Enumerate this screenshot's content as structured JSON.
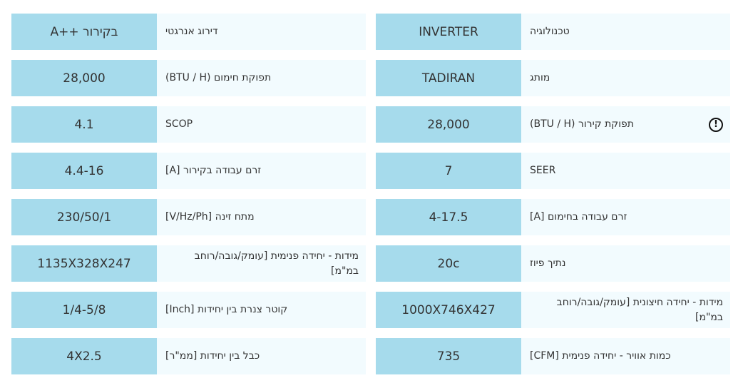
{
  "right_column": [
    {
      "label": "טכנולוגיה",
      "value": "INVERTER"
    },
    {
      "label": "מותג",
      "value": "TADIRAN"
    },
    {
      "label": "תפוקת קירור (BTU / H)",
      "value": "28,000",
      "icon": "info-icon"
    },
    {
      "label": "SEER",
      "value": "7"
    },
    {
      "label": "זרם עבודה בחימום [A]",
      "value": "4-17.5"
    },
    {
      "label": "נתיך פיוז",
      "value": "20c"
    },
    {
      "label": "מידות - יחידה חיצונית [עומק/גובה/רוחב במ\"מ]",
      "value": "1000X746X427"
    },
    {
      "label": "כמות אוויר - יחידה פנימית [CFM]",
      "value": "735"
    }
  ],
  "left_column": [
    {
      "label": "דירוג אנרגטי",
      "value": "A++ בקירור"
    },
    {
      "label": "תפוקת חימום (BTU / H)",
      "value": "28,000"
    },
    {
      "label": "SCOP",
      "value": "4.1"
    },
    {
      "label": "זרם עבודה בקירור [A]",
      "value": "4.4-16"
    },
    {
      "label": "מתח זינה [V/Hz/Ph]",
      "value": "230/50/1"
    },
    {
      "label": "מידות - יחידה פנימית [עומק/גובה/רוחב במ\"מ]",
      "value": "1135X328X247"
    },
    {
      "label": "קוטר צנרת בין יחידות [Inch]",
      "value": "1/4-5/8"
    },
    {
      "label": "כבל בין יחידות [ממ\"ר]",
      "value": "4X2.5"
    }
  ],
  "info_icon_glyph": "!",
  "colors": {
    "label_bg": "#f2fbfe",
    "value_bg": "#a6dbec",
    "text": "#333333"
  }
}
